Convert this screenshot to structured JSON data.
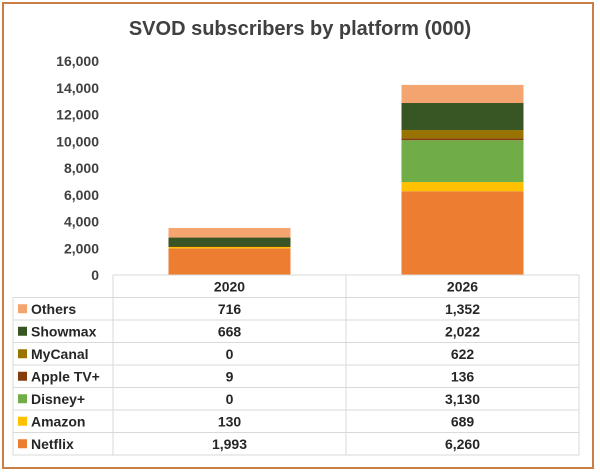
{
  "chart_data": {
    "type": "bar",
    "stacked": true,
    "title": "SVOD subscribers by platform (000)",
    "categories": [
      "2020",
      "2026"
    ],
    "ylim": [
      0,
      16000
    ],
    "yticks": [
      "0",
      "2,000",
      "4,000",
      "6,000",
      "8,000",
      "10,000",
      "12,000",
      "14,000",
      "16,000"
    ],
    "grid": false,
    "legend": "data-table",
    "series": [
      {
        "name": "Netflix",
        "color": "#ed7d31",
        "values": [
          1993,
          6260
        ],
        "labels": [
          "1,993",
          "6,260"
        ]
      },
      {
        "name": "Amazon",
        "color": "#ffc000",
        "values": [
          130,
          689
        ],
        "labels": [
          "130",
          "689"
        ]
      },
      {
        "name": "Disney+",
        "color": "#70ad47",
        "values": [
          0,
          3130
        ],
        "labels": [
          "0",
          "3,130"
        ]
      },
      {
        "name": "Apple TV+",
        "color": "#843c0c",
        "values": [
          9,
          136
        ],
        "labels": [
          "9",
          "136"
        ]
      },
      {
        "name": "MyCanal",
        "color": "#997300",
        "values": [
          0,
          622
        ],
        "labels": [
          "0",
          "622"
        ]
      },
      {
        "name": "Showmax",
        "color": "#375623",
        "values": [
          668,
          2022
        ],
        "labels": [
          "668",
          "2,022"
        ]
      },
      {
        "name": "Others",
        "color": "#f4a46f",
        "values": [
          716,
          1352
        ],
        "labels": [
          "716",
          "1,352"
        ]
      }
    ]
  }
}
